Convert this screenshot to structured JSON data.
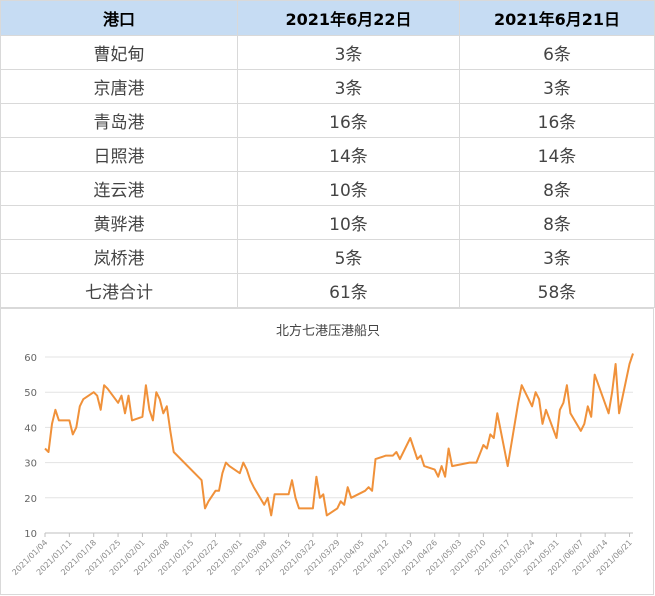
{
  "table": {
    "headers": [
      "港口",
      "2021年6月22日",
      "2021年6月21日"
    ],
    "rows": [
      {
        "port": "曹妃甸",
        "jun22": "3条",
        "jun21": "6条"
      },
      {
        "port": "京唐港",
        "jun22": "3条",
        "jun21": "3条"
      },
      {
        "port": "青岛港",
        "jun22": "16条",
        "jun21": "16条"
      },
      {
        "port": "日照港",
        "jun22": "14条",
        "jun21": "14条"
      },
      {
        "port": "连云港",
        "jun22": "10条",
        "jun21": "8条"
      },
      {
        "port": "黄骅港",
        "jun22": "10条",
        "jun21": "8条"
      },
      {
        "port": "岚桥港",
        "jun22": "5条",
        "jun21": "3条"
      },
      {
        "port": "七港合计",
        "jun22": "61条",
        "jun21": "58条"
      }
    ]
  },
  "chart_data": {
    "type": "line",
    "title": "北方七港压港船只",
    "xlabel": "",
    "ylabel": "",
    "ylim": [
      10,
      60
    ],
    "yticks": [
      10,
      20,
      30,
      40,
      50,
      60
    ],
    "xlim": [
      "2021/01/04",
      "2021/06/22"
    ],
    "xticks": [
      "2021/01/04",
      "2021/01/11",
      "2021/01/18",
      "2021/01/25",
      "2021/02/01",
      "2021/02/08",
      "2021/02/15",
      "2021/02/22",
      "2021/03/01",
      "2021/03/08",
      "2021/03/15",
      "2021/03/22",
      "2021/03/29",
      "2021/04/05",
      "2021/04/12",
      "2021/04/19",
      "2021/04/26",
      "2021/05/03",
      "2021/05/10",
      "2021/05/17",
      "2021/05/24",
      "2021/05/31",
      "2021/06/07",
      "2021/06/14",
      "2021/06/21"
    ],
    "grid": true,
    "line_color": "#f0913a",
    "series": [
      {
        "name": "",
        "points": [
          [
            "2021/01/04",
            34
          ],
          [
            "2021/01/05",
            33
          ],
          [
            "2021/01/06",
            41
          ],
          [
            "2021/01/07",
            45
          ],
          [
            "2021/01/08",
            42
          ],
          [
            "2021/01/11",
            42
          ],
          [
            "2021/01/12",
            38
          ],
          [
            "2021/01/13",
            40
          ],
          [
            "2021/01/14",
            46
          ],
          [
            "2021/01/15",
            48
          ],
          [
            "2021/01/18",
            50
          ],
          [
            "2021/01/19",
            49
          ],
          [
            "2021/01/20",
            45
          ],
          [
            "2021/01/21",
            52
          ],
          [
            "2021/01/22",
            51
          ],
          [
            "2021/01/25",
            47
          ],
          [
            "2021/01/26",
            49
          ],
          [
            "2021/01/27",
            44
          ],
          [
            "2021/01/28",
            49
          ],
          [
            "2021/01/29",
            42
          ],
          [
            "2021/02/01",
            43
          ],
          [
            "2021/02/02",
            52
          ],
          [
            "2021/02/03",
            45
          ],
          [
            "2021/02/04",
            42
          ],
          [
            "2021/02/05",
            50
          ],
          [
            "2021/02/06",
            48
          ],
          [
            "2021/02/07",
            44
          ],
          [
            "2021/02/08",
            46
          ],
          [
            "2021/02/09",
            39
          ],
          [
            "2021/02/10",
            33
          ],
          [
            "2021/02/18",
            25
          ],
          [
            "2021/02/19",
            17
          ],
          [
            "2021/02/20",
            19
          ],
          [
            "2021/02/22",
            22
          ],
          [
            "2021/02/23",
            22
          ],
          [
            "2021/02/24",
            27
          ],
          [
            "2021/02/25",
            30
          ],
          [
            "2021/02/26",
            29
          ],
          [
            "2021/03/01",
            27
          ],
          [
            "2021/03/02",
            30
          ],
          [
            "2021/03/03",
            28
          ],
          [
            "2021/03/04",
            25
          ],
          [
            "2021/03/05",
            23
          ],
          [
            "2021/03/08",
            18
          ],
          [
            "2021/03/09",
            20
          ],
          [
            "2021/03/10",
            15
          ],
          [
            "2021/03/11",
            21
          ],
          [
            "2021/03/12",
            21
          ],
          [
            "2021/03/15",
            21
          ],
          [
            "2021/03/16",
            25
          ],
          [
            "2021/03/17",
            20
          ],
          [
            "2021/03/18",
            17
          ],
          [
            "2021/03/19",
            17
          ],
          [
            "2021/03/22",
            17
          ],
          [
            "2021/03/23",
            26
          ],
          [
            "2021/03/24",
            20
          ],
          [
            "2021/03/25",
            21
          ],
          [
            "2021/03/26",
            15
          ],
          [
            "2021/03/29",
            17
          ],
          [
            "2021/03/30",
            19
          ],
          [
            "2021/03/31",
            18
          ],
          [
            "2021/04/01",
            23
          ],
          [
            "2021/04/02",
            20
          ],
          [
            "2021/04/06",
            22
          ],
          [
            "2021/04/07",
            23
          ],
          [
            "2021/04/08",
            22
          ],
          [
            "2021/04/09",
            31
          ],
          [
            "2021/04/12",
            32
          ],
          [
            "2021/04/13",
            32
          ],
          [
            "2021/04/14",
            32
          ],
          [
            "2021/04/15",
            33
          ],
          [
            "2021/04/16",
            31
          ],
          [
            "2021/04/19",
            37
          ],
          [
            "2021/04/20",
            34
          ],
          [
            "2021/04/21",
            31
          ],
          [
            "2021/04/22",
            32
          ],
          [
            "2021/04/23",
            29
          ],
          [
            "2021/04/26",
            28
          ],
          [
            "2021/04/27",
            26
          ],
          [
            "2021/04/28",
            29
          ],
          [
            "2021/04/29",
            26
          ],
          [
            "2021/04/30",
            34
          ],
          [
            "2021/05/01",
            29
          ],
          [
            "2021/05/06",
            30
          ],
          [
            "2021/05/07",
            30
          ],
          [
            "2021/05/08",
            30
          ],
          [
            "2021/05/10",
            35
          ],
          [
            "2021/05/11",
            34
          ],
          [
            "2021/05/12",
            38
          ],
          [
            "2021/05/13",
            37
          ],
          [
            "2021/05/14",
            44
          ],
          [
            "2021/05/17",
            29
          ],
          [
            "2021/05/18",
            35
          ],
          [
            "2021/05/19",
            41
          ],
          [
            "2021/05/20",
            47
          ],
          [
            "2021/05/21",
            52
          ],
          [
            "2021/05/24",
            46
          ],
          [
            "2021/05/25",
            50
          ],
          [
            "2021/05/26",
            48
          ],
          [
            "2021/05/27",
            41
          ],
          [
            "2021/05/28",
            45
          ],
          [
            "2021/05/31",
            37
          ],
          [
            "2021/06/01",
            45
          ],
          [
            "2021/06/02",
            47
          ],
          [
            "2021/06/03",
            52
          ],
          [
            "2021/06/04",
            44
          ],
          [
            "2021/06/07",
            39
          ],
          [
            "2021/06/08",
            41
          ],
          [
            "2021/06/09",
            46
          ],
          [
            "2021/06/10",
            43
          ],
          [
            "2021/06/11",
            55
          ],
          [
            "2021/06/15",
            44
          ],
          [
            "2021/06/16",
            50
          ],
          [
            "2021/06/17",
            58
          ],
          [
            "2021/06/18",
            44
          ],
          [
            "2021/06/21",
            58
          ],
          [
            "2021/06/22",
            61
          ]
        ]
      }
    ]
  }
}
